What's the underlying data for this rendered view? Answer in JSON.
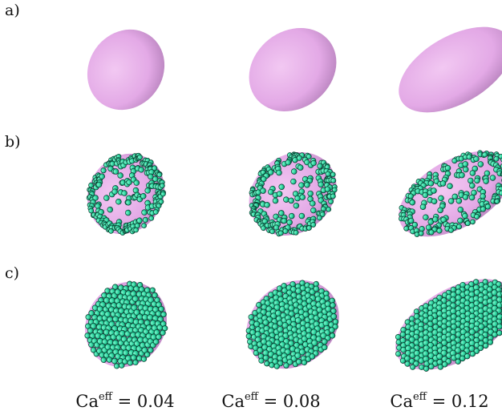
{
  "rows": [
    {
      "label": "a)",
      "particles": "none"
    },
    {
      "label": "b)",
      "particles": "sparse"
    },
    {
      "label": "c)",
      "particles": "dense"
    }
  ],
  "columns": [
    {
      "base": "Ca",
      "sup": "eff",
      "rest": " = 0.04",
      "ca": 0.04
    },
    {
      "base": "Ca",
      "sup": "eff",
      "rest": " = 0.08",
      "ca": 0.08
    },
    {
      "base": "Ca",
      "sup": "eff",
      "rest": " = 0.12",
      "ca": 0.12
    }
  ],
  "colors": {
    "droplet_light": "#f2c8f2",
    "droplet_mid": "#e3a9e6",
    "droplet_dark": "#b07cb6",
    "particle_light": "#7ff5cc",
    "particle_mid": "#2bd49e",
    "particle_dark": "#0e6f55",
    "particle_outline": "#0a3b2e"
  }
}
